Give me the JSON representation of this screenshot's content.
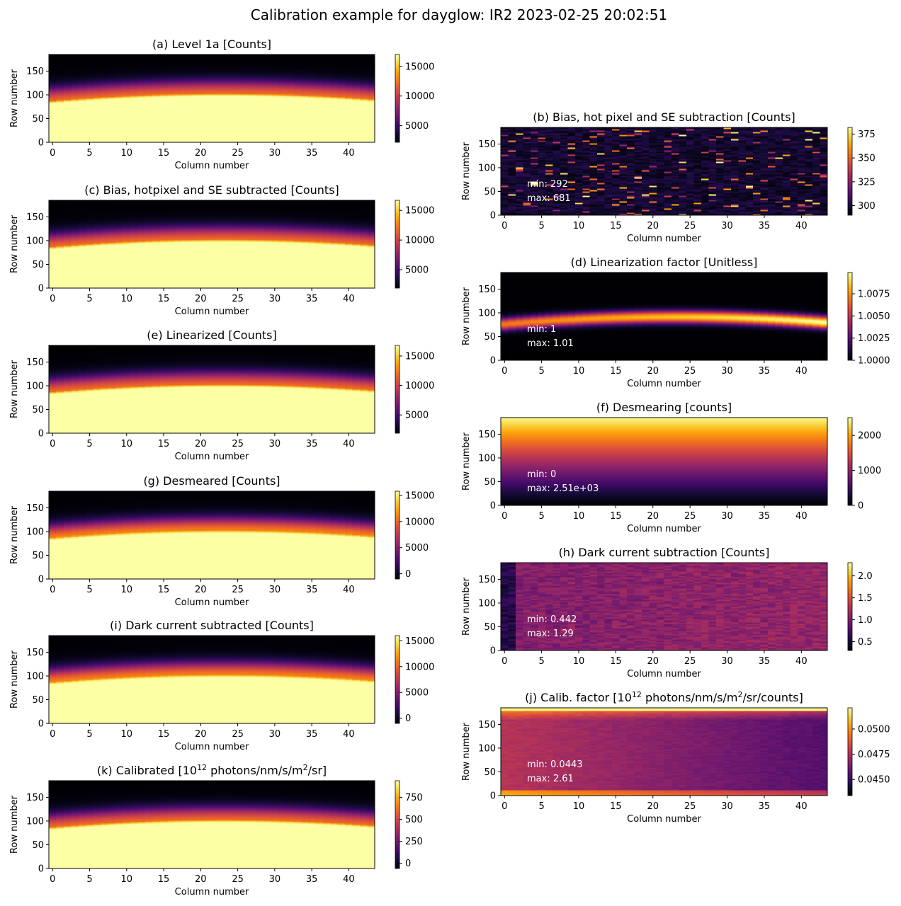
{
  "figure": {
    "title": "Calibration example for dayglow: IR2 2023-02-25 20:02:51"
  },
  "chart_data": [
    {
      "id": "a",
      "type": "heatmap",
      "title": "(a)  Level 1a [Counts]",
      "xlabel": "Column number",
      "ylabel": "Row number",
      "xlim": [
        -0.5,
        43.5
      ],
      "ylim": [
        0,
        185
      ],
      "xticks": [
        "0",
        "5",
        "10",
        "15",
        "20",
        "25",
        "30",
        "35",
        "40"
      ],
      "yticks": [
        "0",
        "50",
        "100",
        "150"
      ],
      "colorbar": {
        "ticks": [
          5000,
          10000,
          15000
        ],
        "labels": [
          "5000",
          "10000",
          "15000"
        ],
        "range": [
          2200,
          17000
        ]
      },
      "pattern": "band",
      "annotations": []
    },
    {
      "id": "b",
      "type": "heatmap",
      "title": "(b) Bias, hot pixel and SE subtraction [Counts]",
      "xlabel": "Column number",
      "ylabel": "Row number",
      "xlim": [
        -0.5,
        43.5
      ],
      "ylim": [
        0,
        185
      ],
      "xticks": [
        "0",
        "5",
        "10",
        "15",
        "20",
        "25",
        "30",
        "35",
        "40"
      ],
      "yticks": [
        "0",
        "50",
        "100",
        "150"
      ],
      "colorbar": {
        "ticks": [
          300,
          325,
          350,
          375
        ],
        "labels": [
          "300",
          "325",
          "350",
          "375"
        ],
        "range": [
          290,
          382
        ]
      },
      "pattern": "noise",
      "annotations": [
        "min: 292",
        "max: 681"
      ]
    },
    {
      "id": "c",
      "type": "heatmap",
      "title": "(c) Bias, hotpixel and SE subtracted [Counts]",
      "xlabel": "Column number",
      "ylabel": "Row number",
      "xlim": [
        -0.5,
        43.5
      ],
      "ylim": [
        0,
        185
      ],
      "xticks": [
        "0",
        "5",
        "10",
        "15",
        "20",
        "25",
        "30",
        "35",
        "40"
      ],
      "yticks": [
        "0",
        "50",
        "100",
        "150"
      ],
      "colorbar": {
        "ticks": [
          5000,
          10000,
          15000
        ],
        "labels": [
          "5000",
          "10000",
          "15000"
        ],
        "range": [
          1900,
          16700
        ]
      },
      "pattern": "band",
      "annotations": []
    },
    {
      "id": "d",
      "type": "heatmap",
      "title": "(d) Linearization factor [Unitless]",
      "xlabel": "Column number",
      "ylabel": "Row number",
      "xlim": [
        -0.5,
        43.5
      ],
      "ylim": [
        0,
        185
      ],
      "xticks": [
        "0",
        "5",
        "10",
        "15",
        "20",
        "25",
        "30",
        "35",
        "40"
      ],
      "yticks": [
        "0",
        "50",
        "100",
        "150"
      ],
      "colorbar": {
        "ticks": [
          1.0,
          1.0025,
          1.005,
          1.0075
        ],
        "labels": [
          "1.0000",
          "1.0025",
          "1.0050",
          "1.0075"
        ],
        "range": [
          1.0,
          1.0099
        ]
      },
      "pattern": "lin",
      "annotations": [
        "min: 1",
        "max: 1.01"
      ]
    },
    {
      "id": "e",
      "type": "heatmap",
      "title": "(e) Linearized [Counts]",
      "xlabel": "Column number",
      "ylabel": "Row number",
      "xlim": [
        -0.5,
        43.5
      ],
      "ylim": [
        0,
        185
      ],
      "xticks": [
        "0",
        "5",
        "10",
        "15",
        "20",
        "25",
        "30",
        "35",
        "40"
      ],
      "yticks": [
        "0",
        "50",
        "100",
        "150"
      ],
      "colorbar": {
        "ticks": [
          5000,
          10000,
          15000
        ],
        "labels": [
          "5000",
          "10000",
          "15000"
        ],
        "range": [
          1900,
          16800
        ]
      },
      "pattern": "band",
      "annotations": []
    },
    {
      "id": "f",
      "type": "heatmap",
      "title": "(f) Desmearing [counts]",
      "xlabel": "Column number",
      "ylabel": "Row number",
      "xlim": [
        -0.5,
        43.5
      ],
      "ylim": [
        0,
        185
      ],
      "xticks": [
        "0",
        "5",
        "10",
        "15",
        "20",
        "25",
        "30",
        "35",
        "40"
      ],
      "yticks": [
        "0",
        "50",
        "100",
        "150"
      ],
      "colorbar": {
        "ticks": [
          0,
          1000,
          2000
        ],
        "labels": [
          "0",
          "1000",
          "2000"
        ],
        "range": [
          0,
          2510
        ]
      },
      "pattern": "ramp",
      "annotations": [
        "min: 0",
        "max: 2.51e+03"
      ]
    },
    {
      "id": "g",
      "type": "heatmap",
      "title": "(g) Desmeared [Counts]",
      "xlabel": "Column number",
      "ylabel": "Row number",
      "xlim": [
        -0.5,
        43.5
      ],
      "ylim": [
        0,
        185
      ],
      "xticks": [
        "0",
        "5",
        "10",
        "15",
        "20",
        "25",
        "30",
        "35",
        "40"
      ],
      "yticks": [
        "0",
        "50",
        "100",
        "150"
      ],
      "colorbar": {
        "ticks": [
          0,
          5000,
          10000,
          15000
        ],
        "labels": [
          "0",
          "5000",
          "10000",
          "15000"
        ],
        "range": [
          -1000,
          15800
        ]
      },
      "pattern": "band_bright",
      "annotations": []
    },
    {
      "id": "h",
      "type": "heatmap",
      "title": "(h) Dark current subtraction [Counts]",
      "xlabel": "Column number",
      "ylabel": "Row number",
      "xlim": [
        -0.5,
        43.5
      ],
      "ylim": [
        0,
        185
      ],
      "xticks": [
        "0",
        "5",
        "10",
        "15",
        "20",
        "25",
        "30",
        "35",
        "40"
      ],
      "yticks": [
        "0",
        "50",
        "100",
        "150"
      ],
      "colorbar": {
        "ticks": [
          0.5,
          1.0,
          1.5,
          2.0
        ],
        "labels": [
          "0.5",
          "1.0",
          "1.5",
          "2.0"
        ],
        "range": [
          0.3,
          2.3
        ]
      },
      "pattern": "dark",
      "annotations": [
        "min: 0.442",
        "max: 1.29"
      ]
    },
    {
      "id": "i",
      "type": "heatmap",
      "title": "(i) Dark current subtracted [Counts]",
      "xlabel": "Column number",
      "ylabel": "Row number",
      "xlim": [
        -0.5,
        43.5
      ],
      "ylim": [
        0,
        185
      ],
      "xticks": [
        "0",
        "5",
        "10",
        "15",
        "20",
        "25",
        "30",
        "35",
        "40"
      ],
      "yticks": [
        "0",
        "50",
        "100",
        "150"
      ],
      "colorbar": {
        "ticks": [
          0,
          5000,
          10000,
          15000
        ],
        "labels": [
          "0",
          "5000",
          "10000",
          "15000"
        ],
        "range": [
          -1000,
          16000
        ]
      },
      "pattern": "band_bright",
      "annotations": []
    },
    {
      "id": "j",
      "type": "heatmap",
      "title": "(j) Calib. factor [10¹² photons/nm/s/m²/sr/counts]",
      "xlabel": "Column number",
      "ylabel": "Row number",
      "xlim": [
        -0.5,
        43.5
      ],
      "ylim": [
        0,
        185
      ],
      "xticks": [
        "0",
        "5",
        "10",
        "15",
        "20",
        "25",
        "30",
        "35",
        "40"
      ],
      "yticks": [
        "0",
        "50",
        "100",
        "150"
      ],
      "colorbar": {
        "ticks": [
          0.045,
          0.0475,
          0.05
        ],
        "labels": [
          "0.0450",
          "0.0475",
          "0.0500"
        ],
        "range": [
          0.0434,
          0.0521
        ]
      },
      "pattern": "calib",
      "annotations": [
        "min: 0.0443",
        "max: 2.61"
      ]
    },
    {
      "id": "k",
      "type": "heatmap",
      "title": "(k) Calibrated [10¹² photons/nm/s/m²/sr]",
      "xlabel": "Column number",
      "ylabel": "Row number",
      "xlim": [
        -0.5,
        43.5
      ],
      "ylim": [
        0,
        185
      ],
      "xticks": [
        "0",
        "5",
        "10",
        "15",
        "20",
        "25",
        "30",
        "35",
        "40"
      ],
      "yticks": [
        "0",
        "50",
        "100",
        "150"
      ],
      "colorbar": {
        "ticks": [
          0,
          250,
          500,
          750
        ],
        "labels": [
          "0",
          "250",
          "500",
          "750"
        ],
        "range": [
          -60,
          940
        ]
      },
      "pattern": "band",
      "annotations": []
    }
  ]
}
